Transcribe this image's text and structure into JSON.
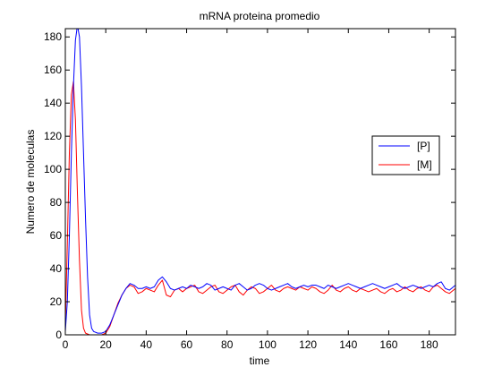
{
  "chart_data": {
    "type": "line",
    "title": "mRNA proteina promedio",
    "xlabel": "time",
    "ylabel": "Numero de moleculas",
    "xlim": [
      0,
      193
    ],
    "ylim": [
      0,
      185
    ],
    "xticks": [
      0,
      20,
      40,
      60,
      80,
      100,
      120,
      140,
      160,
      180
    ],
    "yticks": [
      0,
      20,
      40,
      60,
      80,
      100,
      120,
      140,
      160,
      180
    ],
    "grid": false,
    "legend_position": "right",
    "series": [
      {
        "name": "[P]",
        "color": "#0000ff",
        "x": [
          0,
          1,
          2,
          3,
          4,
          5,
          6,
          7,
          8,
          9,
          10,
          11,
          12,
          13,
          14,
          16,
          18,
          20,
          22,
          24,
          26,
          28,
          30,
          32,
          34,
          36,
          38,
          40,
          42,
          44,
          46,
          48,
          50,
          52,
          54,
          56,
          58,
          60,
          62,
          64,
          66,
          68,
          70,
          72,
          74,
          76,
          78,
          80,
          82,
          84,
          86,
          88,
          90,
          92,
          94,
          96,
          98,
          100,
          102,
          104,
          106,
          108,
          110,
          112,
          114,
          116,
          118,
          120,
          122,
          124,
          126,
          128,
          130,
          132,
          134,
          136,
          138,
          140,
          142,
          144,
          146,
          148,
          150,
          152,
          154,
          156,
          158,
          160,
          162,
          164,
          166,
          168,
          170,
          172,
          174,
          176,
          178,
          180,
          182,
          184,
          186,
          188,
          190,
          193
        ],
        "y": [
          2,
          20,
          60,
          110,
          150,
          178,
          187,
          180,
          150,
          110,
          70,
          35,
          12,
          4,
          2,
          1,
          1,
          2,
          6,
          12,
          18,
          24,
          28,
          31,
          30,
          28,
          28,
          29,
          28,
          29,
          33,
          35,
          32,
          28,
          27,
          28,
          29,
          28,
          30,
          29,
          28,
          29,
          31,
          30,
          27,
          28,
          29,
          28,
          27,
          30,
          31,
          29,
          27,
          28,
          30,
          31,
          30,
          28,
          27,
          28,
          29,
          30,
          31,
          29,
          28,
          29,
          30,
          29,
          30,
          30,
          29,
          28,
          30,
          29,
          28,
          29,
          30,
          31,
          30,
          29,
          28,
          29,
          30,
          31,
          30,
          29,
          28,
          29,
          30,
          31,
          29,
          28,
          29,
          30,
          29,
          28,
          29,
          30,
          29,
          31,
          32,
          28,
          27,
          30
        ]
      },
      {
        "name": "[M]",
        "color": "#ff0000",
        "x": [
          0,
          1,
          2,
          3,
          4,
          5,
          6,
          7,
          8,
          9,
          10,
          12,
          14,
          16,
          18,
          20,
          22,
          24,
          26,
          28,
          30,
          32,
          34,
          36,
          38,
          40,
          42,
          44,
          46,
          48,
          50,
          52,
          54,
          56,
          58,
          60,
          62,
          64,
          66,
          68,
          70,
          72,
          74,
          76,
          78,
          80,
          82,
          84,
          86,
          88,
          90,
          92,
          94,
          96,
          98,
          100,
          102,
          104,
          106,
          108,
          110,
          112,
          114,
          116,
          118,
          120,
          122,
          124,
          126,
          128,
          130,
          132,
          134,
          136,
          138,
          140,
          142,
          144,
          146,
          148,
          150,
          152,
          154,
          156,
          158,
          160,
          162,
          164,
          166,
          168,
          170,
          172,
          174,
          176,
          178,
          180,
          182,
          184,
          186,
          188,
          190,
          193
        ],
        "y": [
          5,
          55,
          110,
          145,
          153,
          130,
          85,
          45,
          15,
          4,
          1,
          0,
          0,
          0,
          0,
          1,
          5,
          12,
          19,
          24,
          28,
          30,
          29,
          25,
          26,
          28,
          27,
          26,
          30,
          33,
          24,
          23,
          27,
          28,
          26,
          28,
          29,
          30,
          26,
          25,
          27,
          29,
          30,
          26,
          25,
          27,
          29,
          30,
          26,
          24,
          27,
          29,
          28,
          25,
          26,
          28,
          30,
          27,
          26,
          28,
          29,
          28,
          27,
          29,
          28,
          27,
          29,
          28,
          26,
          25,
          27,
          30,
          27,
          26,
          28,
          29,
          27,
          26,
          28,
          27,
          26,
          27,
          28,
          26,
          25,
          27,
          28,
          26,
          27,
          29,
          27,
          26,
          28,
          29,
          27,
          26,
          29,
          30,
          28,
          26,
          25,
          28
        ]
      }
    ]
  }
}
